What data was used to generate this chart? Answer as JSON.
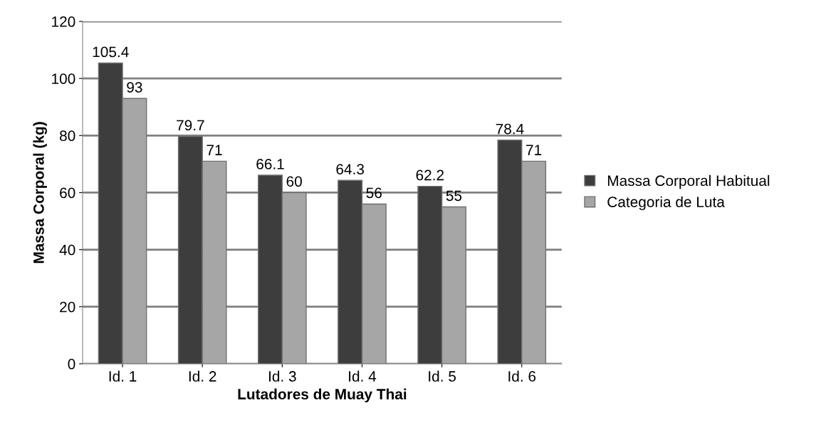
{
  "chart_data": {
    "type": "bar",
    "xlabel": "Lutadores de Muay Thai",
    "ylabel": "Massa Corporal (kg)",
    "categories": [
      "Id. 1",
      "Id. 2",
      "Id. 3",
      "Id. 4",
      "Id. 5",
      "Id. 6"
    ],
    "series": [
      {
        "name": "Massa Corporal Habitual",
        "color": "#3d3d3d",
        "values": [
          105.4,
          79.7,
          66.1,
          64.3,
          62.2,
          78.4
        ]
      },
      {
        "name": "Categoria de Luta",
        "color": "#a6a6a6",
        "values": [
          93,
          71,
          60,
          56,
          55,
          71
        ]
      }
    ],
    "ylim": [
      0,
      120
    ],
    "yticks": [
      0,
      20,
      40,
      60,
      80,
      100,
      120
    ],
    "grid": "y",
    "legend": "right",
    "data_labels": true
  }
}
